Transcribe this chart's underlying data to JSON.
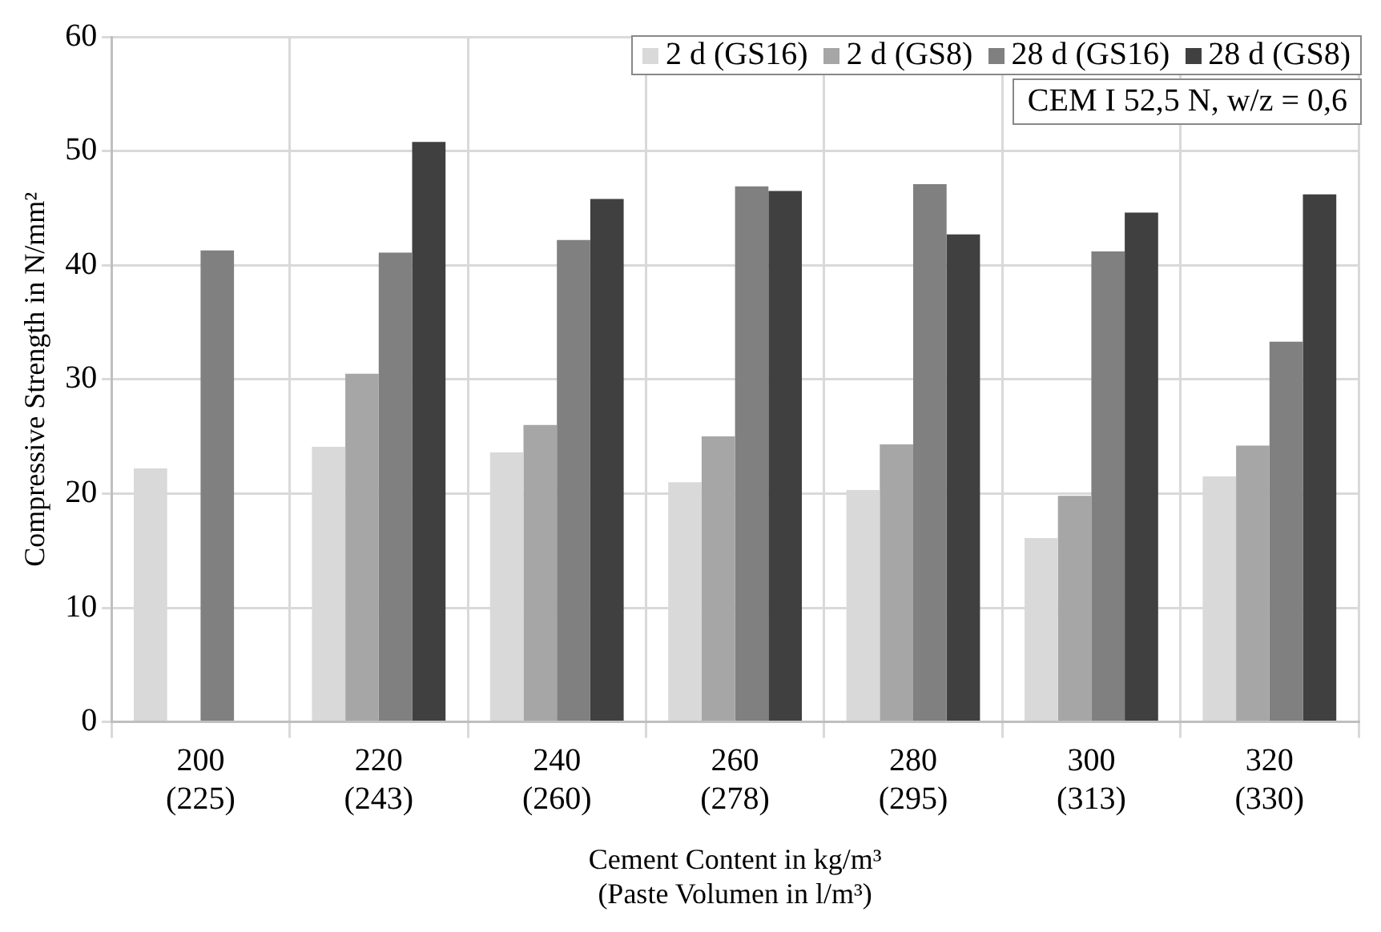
{
  "chart_data": {
    "type": "bar",
    "categories": [
      "200\n(225)",
      "220\n(243)",
      "240\n(260)",
      "260\n(278)",
      "280\n(295)",
      "300\n(313)",
      "320\n(330)"
    ],
    "series": [
      {
        "name": "2 d (GS16)",
        "color": "#d9d9d9",
        "values": [
          22.2,
          24.1,
          23.6,
          21.0,
          20.3,
          16.1,
          21.5
        ]
      },
      {
        "name": "2 d (GS8)",
        "color": "#a6a6a6",
        "values": [
          null,
          30.5,
          26.0,
          25.0,
          24.3,
          19.8,
          24.2
        ]
      },
      {
        "name": "28 d (GS16)",
        "color": "#808080",
        "values": [
          41.3,
          41.1,
          42.2,
          46.9,
          47.1,
          41.2,
          33.3
        ]
      },
      {
        "name": "28 d (GS8)",
        "color": "#404040",
        "values": [
          null,
          50.8,
          45.8,
          46.5,
          42.7,
          44.6,
          46.2
        ]
      }
    ],
    "xlabel": "Cement Content in kg/m³\n(Paste Volumen in l/m³)",
    "ylabel": "Compressive Strength in N/mm²",
    "ylim": [
      0,
      60
    ],
    "yticks": [
      0,
      10,
      20,
      30,
      40,
      50,
      60
    ],
    "annotations": [
      "CEM I 52,5 N, w/z = 0,6"
    ],
    "grid": true,
    "legend": "top right"
  }
}
